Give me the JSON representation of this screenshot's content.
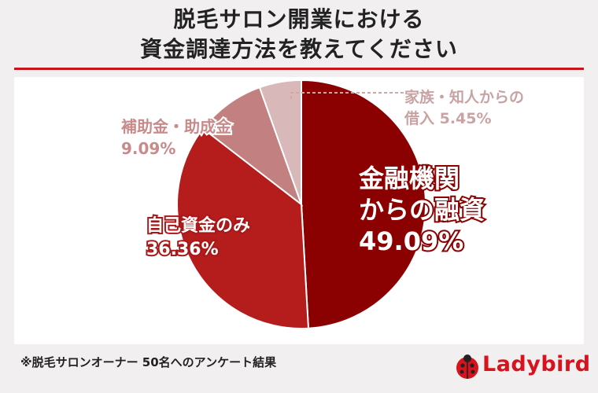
{
  "title": {
    "line1": "脱毛サロン開業における",
    "line2": "資金調達方法を教えてください"
  },
  "chart_data": {
    "type": "pie",
    "title": "脱毛サロン開業における資金調達方法を教えてください",
    "slices": [
      {
        "label_lines": [
          "金融機関",
          "からの融資"
        ],
        "value": 49.09,
        "value_text": "49.09%",
        "color": "#8b0000"
      },
      {
        "label_lines": [
          "自己資金のみ"
        ],
        "value": 36.36,
        "value_text": "36.36%",
        "color": "#b51c1c"
      },
      {
        "label_lines": [
          "補助金・助成金"
        ],
        "value": 9.09,
        "value_text": "9.09%",
        "color": "#c28080"
      },
      {
        "label_lines": [
          "家族・知人からの",
          "借入"
        ],
        "value": 5.45,
        "value_text": "5.45%",
        "color": "#d8b8b8"
      }
    ]
  },
  "footnote": "※脱毛サロンオーナー 50名へのアンケート結果",
  "brand": {
    "name": "Ladybird",
    "color": "#d7141d",
    "icon": "ladybug-icon"
  }
}
